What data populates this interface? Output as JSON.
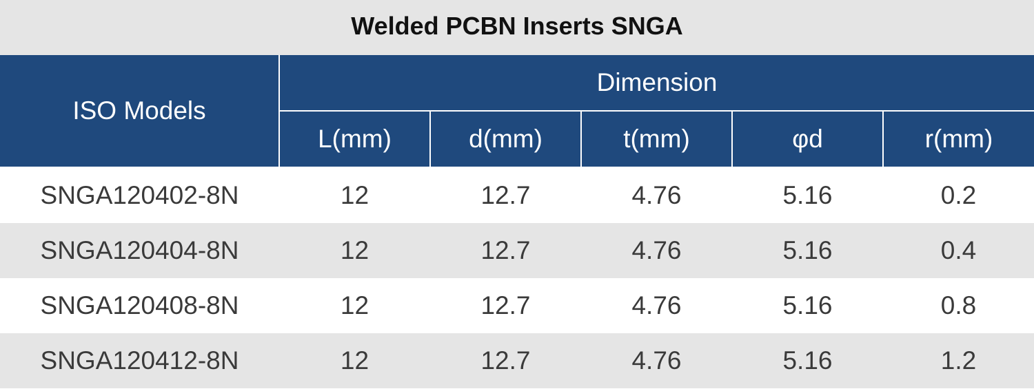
{
  "title": "Welded PCBN Inserts SNGA",
  "headers": {
    "model": "ISO Models",
    "group": "Dimension",
    "columns": [
      "L(mm)",
      "d(mm)",
      "t(mm)",
      "φd",
      "r(mm)"
    ]
  },
  "rows": [
    {
      "model": "SNGA120402-8N",
      "values": [
        "12",
        "12.7",
        "4.76",
        "5.16",
        "0.2"
      ]
    },
    {
      "model": "SNGA120404-8N",
      "values": [
        "12",
        "12.7",
        "4.76",
        "5.16",
        "0.4"
      ]
    },
    {
      "model": "SNGA120408-8N",
      "values": [
        "12",
        "12.7",
        "4.76",
        "5.16",
        "0.8"
      ]
    },
    {
      "model": "SNGA120412-8N",
      "values": [
        "12",
        "12.7",
        "4.76",
        "5.16",
        "1.2"
      ]
    }
  ],
  "colors": {
    "header_bg": "#1f497d",
    "header_text": "#ffffff",
    "stripe": "#e5e5e5",
    "body_text": "#3a3a3a"
  }
}
